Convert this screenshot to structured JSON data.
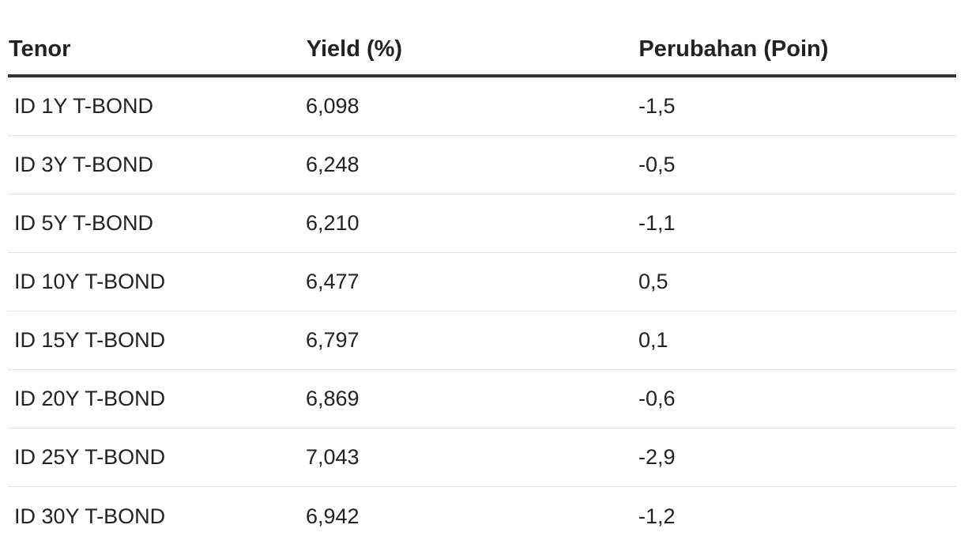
{
  "table": {
    "headers": [
      "Tenor",
      "Yield (%)",
      "Perubahan (Poin)"
    ],
    "rows": [
      {
        "tenor": "ID 1Y T-BOND",
        "yield": "6,098",
        "change": "-1,5"
      },
      {
        "tenor": "ID 3Y T-BOND",
        "yield": "6,248",
        "change": "-0,5"
      },
      {
        "tenor": "ID 5Y T-BOND",
        "yield": "6,210",
        "change": "-1,1"
      },
      {
        "tenor": "ID 10Y T-BOND",
        "yield": "6,477",
        "change": "0,5"
      },
      {
        "tenor": "ID 15Y T-BOND",
        "yield": "6,797",
        "change": "0,1"
      },
      {
        "tenor": "ID 20Y T-BOND",
        "yield": "6,869",
        "change": "-0,6"
      },
      {
        "tenor": "ID 25Y T-BOND",
        "yield": "7,043",
        "change": "-2,9"
      },
      {
        "tenor": "ID 30Y T-BOND",
        "yield": "6,942",
        "change": "-1,2"
      }
    ]
  }
}
